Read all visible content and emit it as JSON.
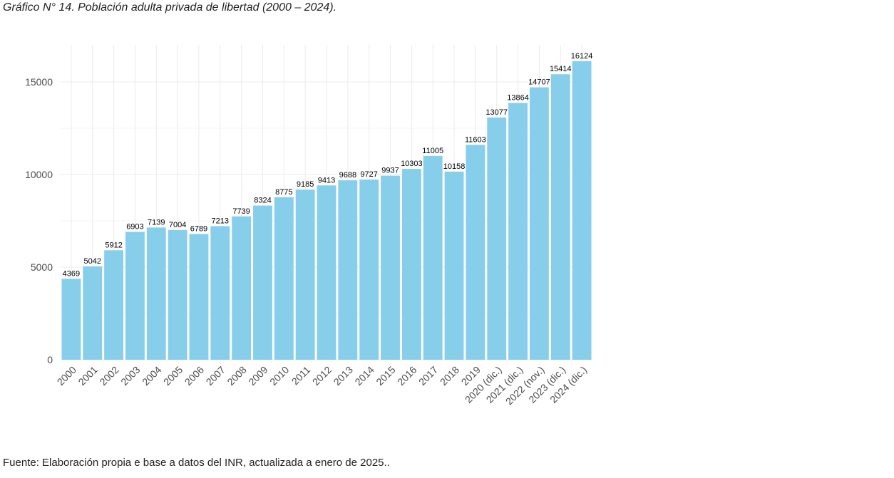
{
  "caption": "Gráfico N° 14. Población adulta privada de libertad (2000 – 2024).",
  "source": "Fuente: Elaboración propia e base a datos del INR, actualizada a enero de 2025..",
  "chart_data": {
    "type": "bar",
    "title": "",
    "xlabel": "",
    "ylabel": "",
    "ylim": [
      0,
      16800
    ],
    "yticks": [
      0,
      5000,
      10000,
      15000
    ],
    "grid": true,
    "bar_color": "#87CEEB",
    "categories": [
      "2000",
      "2001",
      "2002",
      "2003",
      "2004",
      "2005",
      "2006",
      "2007",
      "2008",
      "2009",
      "2010",
      "2011",
      "2012",
      "2013",
      "2014",
      "2015",
      "2016",
      "2017",
      "2018",
      "2019",
      "2020 (dic.)",
      "2021 (dic.)",
      "2022 (nov.)",
      "2023 (dic.)",
      "2024 (dic.)"
    ],
    "values": [
      4369,
      5042,
      5912,
      6903,
      7139,
      7004,
      6789,
      7213,
      7739,
      8324,
      8775,
      9185,
      9413,
      9688,
      9727,
      9937,
      10303,
      11005,
      10158,
      11603,
      13077,
      13864,
      14707,
      15414,
      16124
    ]
  }
}
